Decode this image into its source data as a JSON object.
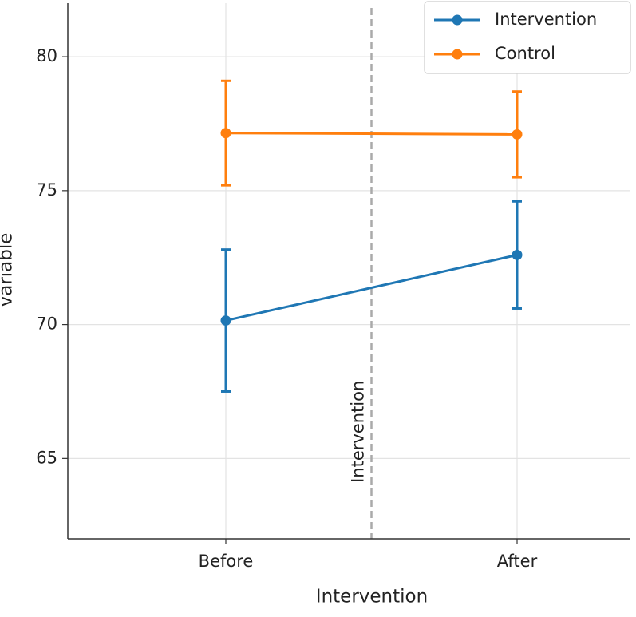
{
  "chart_data": {
    "type": "line",
    "categories": [
      "Before",
      "After"
    ],
    "series": [
      {
        "name": "Intervention",
        "color": "#1f77b4",
        "values": [
          70.15,
          72.6
        ],
        "errors": [
          2.65,
          2.0
        ]
      },
      {
        "name": "Control",
        "color": "#ff7f0e",
        "values": [
          77.15,
          77.1
        ],
        "errors": [
          1.95,
          1.6
        ]
      }
    ],
    "xlabel": "Intervention",
    "ylabel": "variable",
    "ylim": [
      62,
      82
    ],
    "yticks": [
      65,
      70,
      75,
      80
    ],
    "grid": true,
    "annotation": "Intervention",
    "legend": "upper right"
  }
}
